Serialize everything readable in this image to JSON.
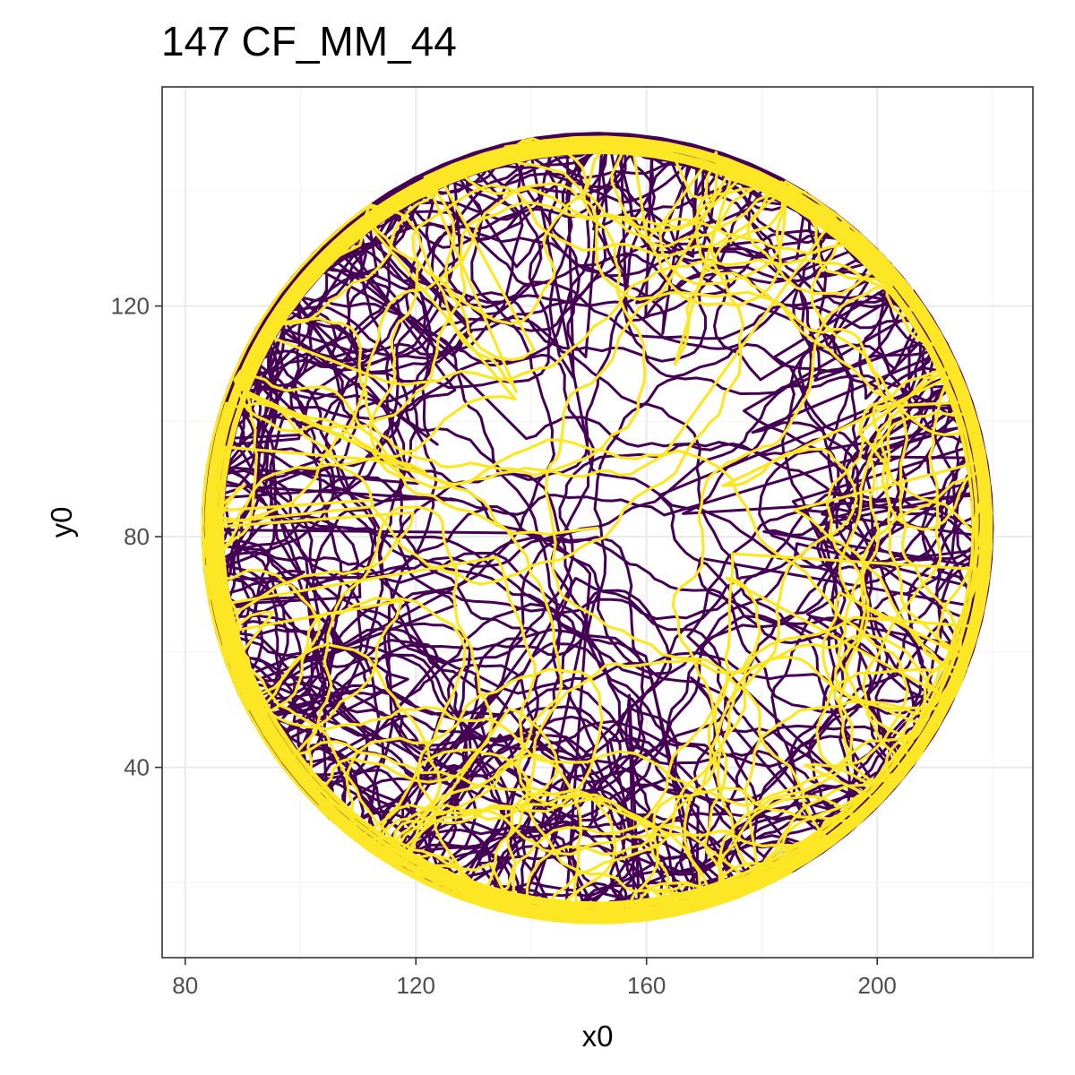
{
  "chart_data": {
    "type": "line",
    "title": "147 CF_MM_44",
    "xlabel": "x0",
    "ylabel": "y0",
    "xlim": [
      76,
      227
    ],
    "ylim": [
      7,
      158
    ],
    "x_ticks": [
      80,
      120,
      160,
      200
    ],
    "y_ticks": [
      40,
      80,
      120
    ],
    "x_minor": [
      100,
      140,
      180,
      220
    ],
    "y_minor": [
      20,
      60,
      100,
      140
    ],
    "grid": true,
    "legend": "none",
    "arena": {
      "center_x": 151.5,
      "center_y": 81.5,
      "radius": 68.5
    },
    "series": [
      {
        "color": "#440154",
        "segments": 380,
        "seed": 11,
        "width": 3.0
      },
      {
        "color": "#FDE725",
        "segments": 150,
        "seed": 97,
        "width": 3.2
      }
    ]
  }
}
